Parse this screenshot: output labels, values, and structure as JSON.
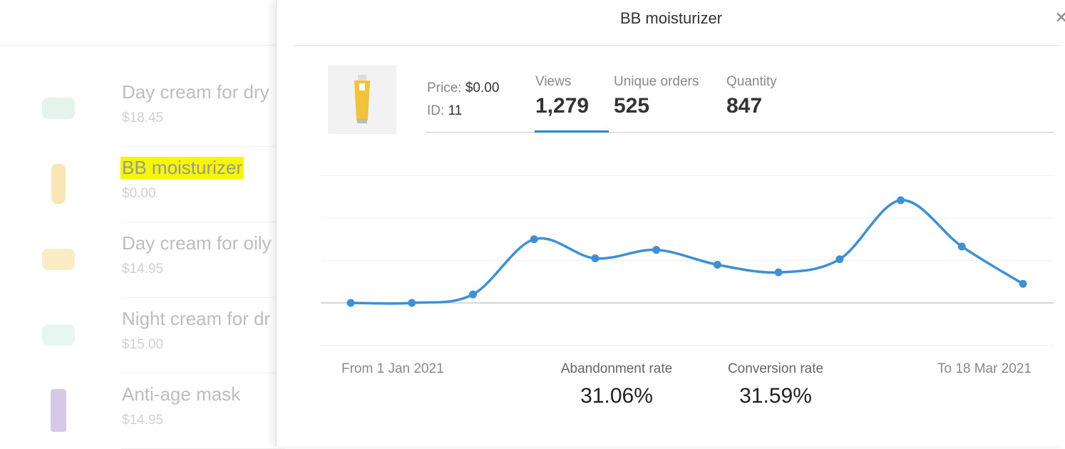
{
  "background_list": {
    "items": [
      {
        "name": "Day cream for dry",
        "price": "$18.45",
        "thumb_color": "#cfe9df",
        "highlighted": false
      },
      {
        "name": "BB moisturizer",
        "price": "$0.00",
        "thumb_color": "#f3d27a",
        "highlighted": true
      },
      {
        "name": "Day cream for oily",
        "price": "$14.95",
        "thumb_color": "#f6dd95",
        "highlighted": false
      },
      {
        "name": "Night cream for dr",
        "price": "$15.00",
        "thumb_color": "#d4efe5",
        "highlighted": false
      },
      {
        "name": "Anti-age mask",
        "price": "$14.95",
        "thumb_color": "#b59ad6",
        "highlighted": false
      }
    ]
  },
  "panel": {
    "title": "BB moisturizer",
    "close_icon": "close-icon",
    "price_label": "Price:",
    "price_value": "$0.00",
    "id_label": "ID:",
    "id_value": "11",
    "stats": [
      {
        "label": "Views",
        "value": "1,279",
        "selected": true
      },
      {
        "label": "Unique orders",
        "value": "525",
        "selected": false
      },
      {
        "label": "Quantity",
        "value": "847",
        "selected": false
      }
    ],
    "from_label": "From 1 Jan 2021",
    "to_label": "To 18 Mar 2021",
    "abandonment_label": "Abandonment rate",
    "abandonment_value": "31.06%",
    "conversion_label": "Conversion rate",
    "conversion_value": "31.59%",
    "accent_color": "#3d8fd6"
  },
  "chart_data": {
    "type": "line",
    "values": [
      0,
      0,
      0.2,
      1.5,
      1.05,
      1.25,
      0.9,
      0.72,
      1.03,
      2.42,
      1.33,
      0.45
    ],
    "ylim": [
      -1,
      3
    ],
    "grid": true,
    "smooth": true,
    "markers": true
  }
}
